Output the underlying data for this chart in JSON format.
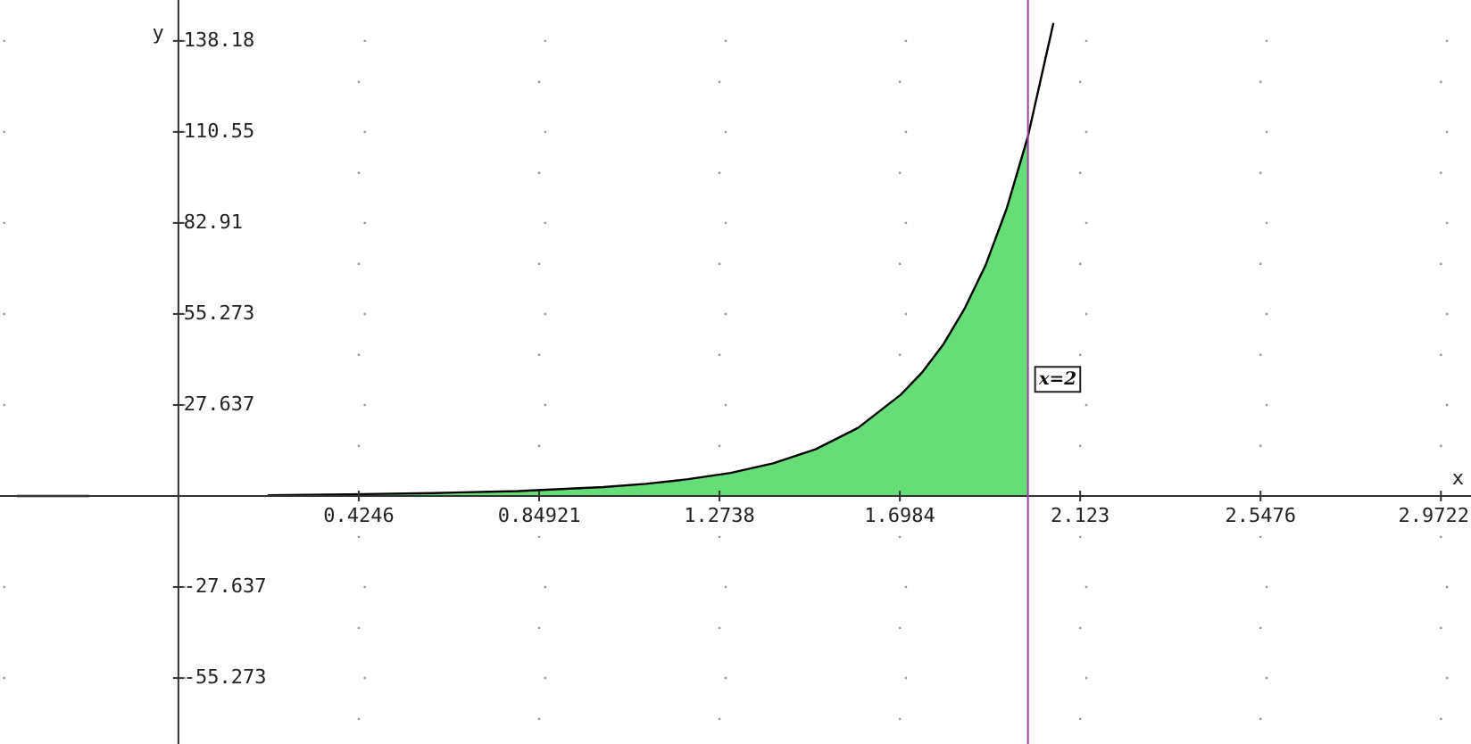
{
  "chart_data": {
    "type": "line",
    "xlabel": "x",
    "ylabel": "y",
    "xlim": [
      -0.42,
      3.043
    ],
    "ylim": [
      -75.3,
      150.6
    ],
    "xticks": [
      0.4246,
      0.84921,
      1.2738,
      1.6984,
      2.123,
      2.5476,
      2.9722
    ],
    "yticks": [
      -55.273,
      -27.637,
      27.637,
      55.273,
      82.91,
      110.55,
      138.18
    ],
    "grid": true,
    "series": [
      {
        "type": "area",
        "color": "#66dd77",
        "x": [
          0.21,
          0.4,
          0.6,
          0.8,
          1.0,
          1.1,
          1.2,
          1.3,
          1.4,
          1.5,
          1.6,
          1.7,
          1.75,
          1.8,
          1.85,
          1.9,
          1.95,
          2.0
        ],
        "values": [
          0.2,
          0.5,
          0.9,
          1.5,
          2.7,
          3.7,
          5.1,
          7.0,
          9.9,
          14.2,
          20.7,
          30.7,
          37.4,
          45.9,
          56.7,
          70.0,
          87.3,
          109.2
        ]
      },
      {
        "color": "#000000",
        "x": [
          -0.38,
          -0.21,
          0,
          0.21,
          0.4,
          0.6,
          0.8,
          1.0,
          1.1,
          1.2,
          1.3,
          1.4,
          1.5,
          1.6,
          1.7,
          1.75,
          1.8,
          1.85,
          1.9,
          1.95,
          2.0,
          2.06
        ],
        "values": [
          0,
          0,
          null,
          0.2,
          0.5,
          0.9,
          1.5,
          2.7,
          3.7,
          5.1,
          7.0,
          9.9,
          14.2,
          20.7,
          30.7,
          37.4,
          45.9,
          56.7,
          70.0,
          87.3,
          109.2,
          143.6
        ]
      }
    ],
    "ref_lines": [
      {
        "axis": "x",
        "value": 2,
        "label": "x=2",
        "color": "#a040a0"
      }
    ]
  }
}
